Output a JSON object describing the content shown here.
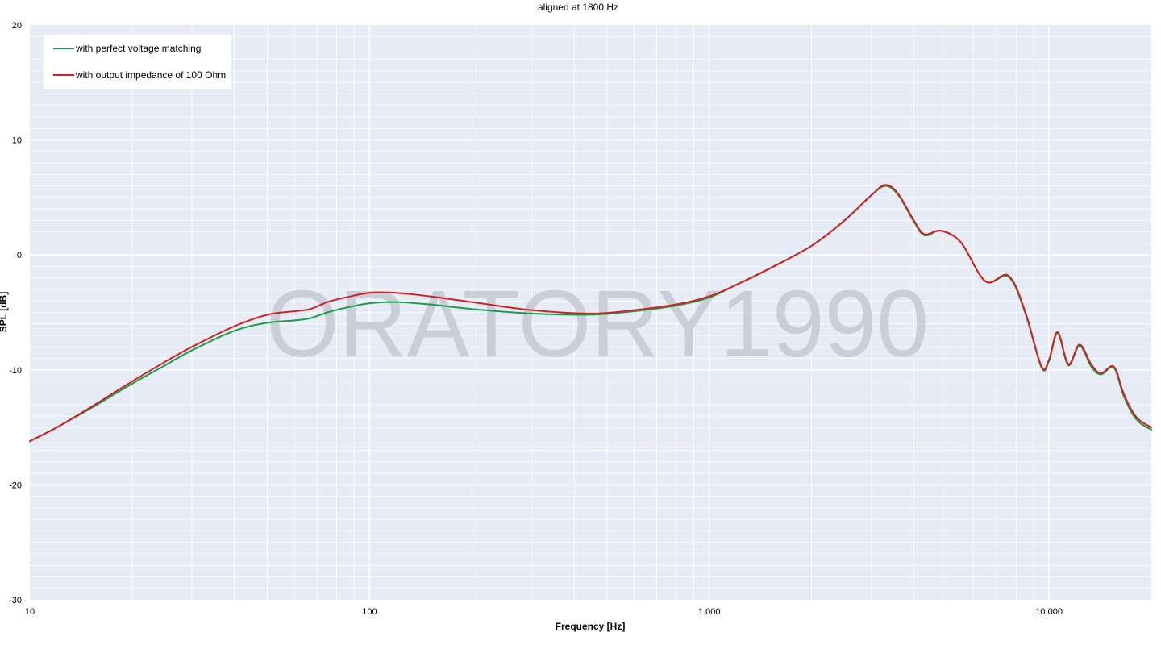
{
  "chart_data": {
    "type": "line",
    "title": "aligned at 1800 Hz",
    "xlabel": "Frequency [Hz]",
    "ylabel": "SPL [dB]",
    "x_scale": "log",
    "xlim": [
      10,
      20000
    ],
    "ylim": [
      -30,
      20
    ],
    "x_ticks": [
      {
        "value": 10,
        "label": "10"
      },
      {
        "value": 100,
        "label": "100"
      },
      {
        "value": 1000,
        "label": "1.000"
      },
      {
        "value": 10000,
        "label": "10.000"
      }
    ],
    "y_ticks": [
      {
        "value": 20,
        "label": "20"
      },
      {
        "value": 10,
        "label": "10"
      },
      {
        "value": 0,
        "label": "0"
      },
      {
        "value": -10,
        "label": "-10"
      },
      {
        "value": -20,
        "label": "-20"
      },
      {
        "value": -30,
        "label": "-30"
      }
    ],
    "grid": true,
    "legend_position": "top-left",
    "watermark": "ORATORY1990",
    "series": [
      {
        "name": "with perfect voltage matching",
        "color": "#1a9e4a",
        "x": [
          10,
          12,
          15,
          20,
          25,
          30,
          40,
          50,
          60,
          67,
          75,
          85,
          100,
          120,
          150,
          200,
          300,
          450,
          600,
          800,
          1000,
          1200,
          1500,
          2000,
          2500,
          3000,
          3300,
          3600,
          4000,
          4300,
          4800,
          5500,
          6500,
          7600,
          8500,
          9500,
          10000,
          10600,
          11400,
          12300,
          13300,
          14200,
          15500,
          16500,
          17500,
          18500,
          20000
        ],
        "y": [
          -16.2,
          -15.0,
          -13.4,
          -11.2,
          -9.6,
          -8.3,
          -6.6,
          -5.9,
          -5.7,
          -5.5,
          -5.0,
          -4.6,
          -4.2,
          -4.1,
          -4.3,
          -4.7,
          -5.1,
          -5.2,
          -4.9,
          -4.4,
          -3.7,
          -2.6,
          -1.2,
          0.8,
          3.0,
          5.2,
          6.0,
          5.2,
          2.9,
          1.7,
          2.1,
          1.1,
          -2.3,
          -1.9,
          -5.0,
          -9.8,
          -9.2,
          -6.8,
          -9.6,
          -7.9,
          -9.7,
          -10.4,
          -9.8,
          -12.1,
          -13.7,
          -14.6,
          -15.2
        ]
      },
      {
        "name": "with output impedance of 100 Ohm",
        "color": "#d42020",
        "x": [
          10,
          12,
          15,
          20,
          25,
          30,
          40,
          50,
          60,
          67,
          75,
          85,
          100,
          120,
          150,
          200,
          300,
          450,
          600,
          800,
          1000,
          1200,
          1500,
          2000,
          2500,
          3000,
          3300,
          3600,
          4000,
          4300,
          4800,
          5500,
          6500,
          7600,
          8500,
          9500,
          10000,
          10600,
          11400,
          12300,
          13300,
          14200,
          15500,
          16500,
          17500,
          18500,
          20000
        ],
        "y": [
          -16.2,
          -15.0,
          -13.3,
          -11.0,
          -9.3,
          -8.0,
          -6.2,
          -5.2,
          -4.9,
          -4.7,
          -4.1,
          -3.7,
          -3.3,
          -3.3,
          -3.6,
          -4.1,
          -4.8,
          -5.1,
          -4.8,
          -4.3,
          -3.6,
          -2.6,
          -1.2,
          0.8,
          3.0,
          5.2,
          6.1,
          5.3,
          3.0,
          1.8,
          2.1,
          1.1,
          -2.3,
          -1.8,
          -4.9,
          -9.7,
          -9.1,
          -6.7,
          -9.5,
          -7.8,
          -9.5,
          -10.3,
          -9.7,
          -11.9,
          -13.5,
          -14.4,
          -15.0
        ]
      }
    ]
  }
}
